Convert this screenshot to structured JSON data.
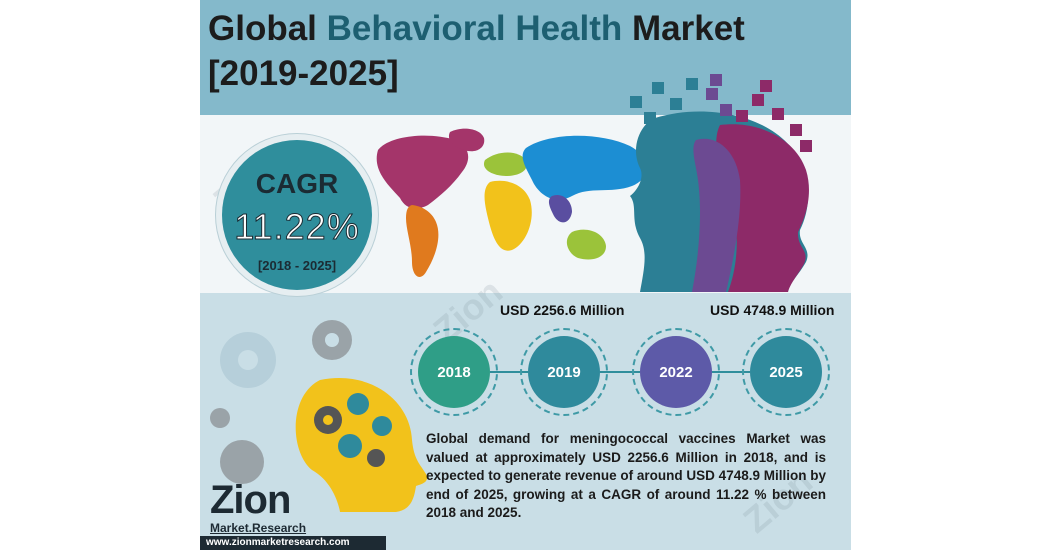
{
  "title": {
    "part1": "Global ",
    "accent": "Behavioral Health",
    "part2": " Market",
    "years": "[2019-2025]"
  },
  "cagr": {
    "label": "CAGR",
    "value": "11.22%",
    "range": "[2018 - 2025]"
  },
  "values": {
    "start": "USD 2256.6 Million",
    "end": "USD 4748.9 Million"
  },
  "timeline": [
    {
      "year": "2018",
      "color": "#2f9e87"
    },
    {
      "year": "2019",
      "color": "#2f8a9c"
    },
    {
      "year": "2022",
      "color": "#5d5aa8"
    },
    {
      "year": "2025",
      "color": "#2f8a9c"
    }
  ],
  "description": "Global demand for meningococcal vaccines Market was valued at approximately USD 2256.6 Million in 2018, and is expected to generate revenue of around USD 4748.9 Million by end of 2025, growing at a CAGR of around 11.22 % between 2018 and 2025.",
  "logo": {
    "name": "Zion",
    "sub": "Market.Research"
  },
  "watermark": "Zion",
  "footer": "www.zionmarketresearch.com"
}
